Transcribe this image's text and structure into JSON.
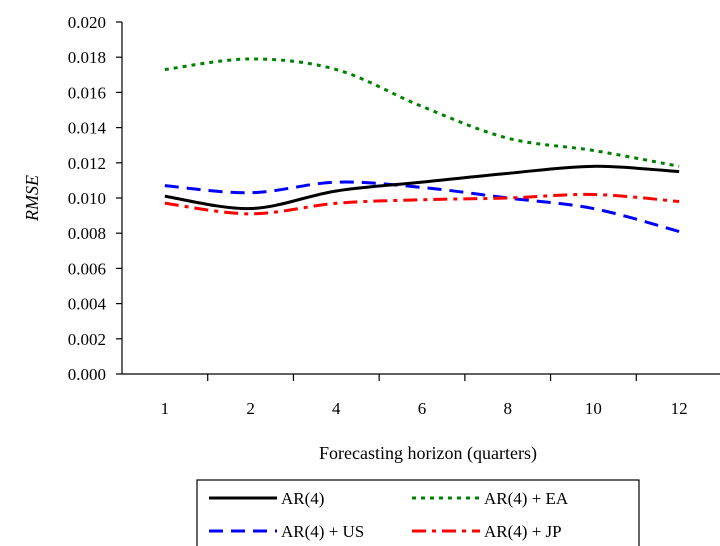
{
  "chart_data": {
    "type": "line",
    "xlabel": "Forecasting horizon (quarters)",
    "ylabel": "RMSE",
    "categories": [
      "1",
      "2",
      "4",
      "6",
      "8",
      "10",
      "12"
    ],
    "y_ticks": [
      "0.000",
      "0.002",
      "0.004",
      "0.006",
      "0.008",
      "0.010",
      "0.012",
      "0.014",
      "0.016",
      "0.018",
      "0.020"
    ],
    "ylim": [
      0,
      0.02
    ],
    "grid": false,
    "legend_position": "bottom",
    "series": [
      {
        "name": "AR(4)",
        "color": "#000000",
        "dash": "solid",
        "values": [
          0.0101,
          0.0094,
          0.0104,
          0.0109,
          0.0114,
          0.0118,
          0.0115
        ]
      },
      {
        "name": "AR(4) + EA",
        "color": "#008000",
        "dash": "dotted",
        "values": [
          0.0173,
          0.0179,
          0.0173,
          0.0152,
          0.0134,
          0.0127,
          0.0118
        ]
      },
      {
        "name": "AR(4) + US",
        "color": "#0000ff",
        "dash": "dashed",
        "values": [
          0.0107,
          0.0103,
          0.0109,
          0.0106,
          0.01,
          0.0094,
          0.0081
        ]
      },
      {
        "name": "AR(4) + JP",
        "color": "#ff0000",
        "dash": "dashdot",
        "values": [
          0.0097,
          0.0091,
          0.0097,
          0.0099,
          0.01,
          0.0102,
          0.0098
        ]
      }
    ]
  }
}
